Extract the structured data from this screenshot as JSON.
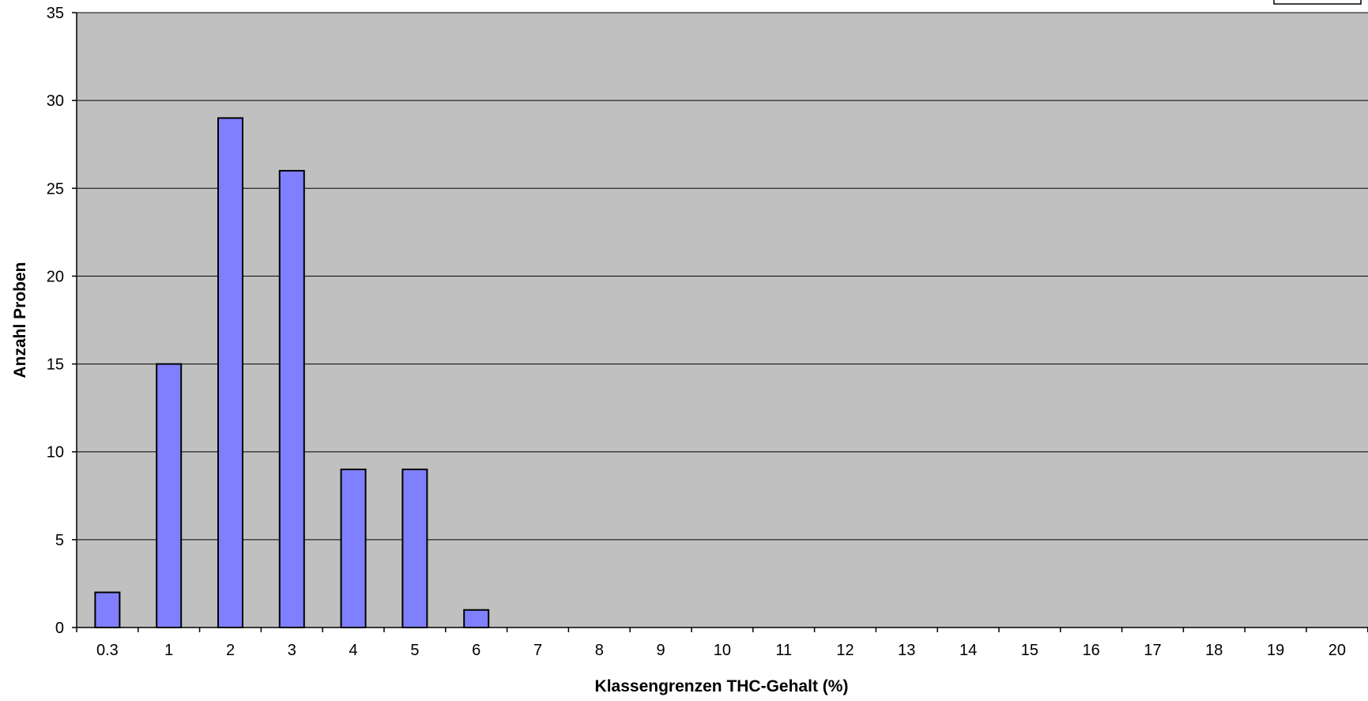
{
  "chart_data": {
    "type": "bar",
    "title": "",
    "xlabel": "Klassengrenzen THC-Gehalt (%)",
    "ylabel": "Anzahl Proben",
    "categories": [
      "0.3",
      "1",
      "2",
      "3",
      "4",
      "5",
      "6",
      "7",
      "8",
      "9",
      "10",
      "11",
      "12",
      "13",
      "14",
      "15",
      "16",
      "17",
      "18",
      "19",
      "20"
    ],
    "values": [
      2,
      15,
      29,
      26,
      9,
      9,
      1,
      0,
      0,
      0,
      0,
      0,
      0,
      0,
      0,
      0,
      0,
      0,
      0,
      0,
      0
    ],
    "ylim": [
      0,
      35
    ],
    "yticks": [
      "0",
      "5",
      "10",
      "15",
      "20",
      "25",
      "30",
      "35"
    ],
    "grid": true,
    "legend": "top-right (partially visible, no text)",
    "colors": {
      "plot_background": "#c0c0c0",
      "bar_fill": "#8080ff",
      "bar_stroke": "#000000",
      "gridline": "#000000"
    }
  }
}
